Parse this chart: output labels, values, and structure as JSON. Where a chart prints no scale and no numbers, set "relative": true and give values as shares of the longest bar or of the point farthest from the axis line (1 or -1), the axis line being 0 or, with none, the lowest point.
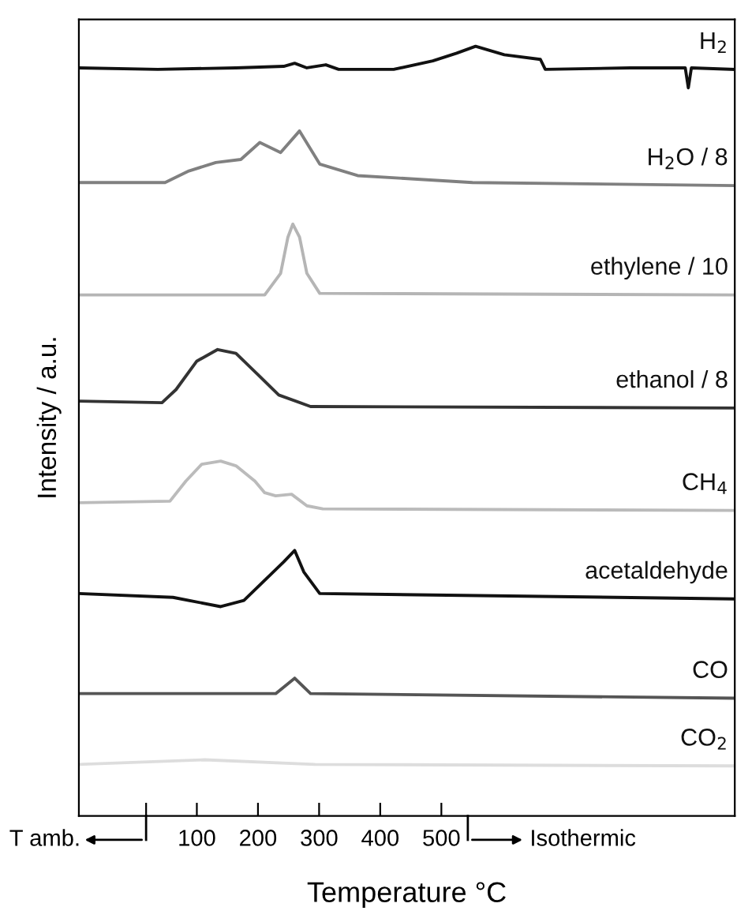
{
  "chart_data": {
    "type": "line",
    "relative": true,
    "xlabel": "Temperature °C",
    "ylabel": "Intensity / a.u.",
    "xlim": [
      -93,
      980
    ],
    "xticks": [
      {
        "value": 17,
        "label": null
      },
      100,
      200,
      300,
      400,
      500
    ],
    "annotations": [
      "T amb.",
      "Isothermic"
    ],
    "grid": false,
    "legend": false,
    "marker": "none",
    "line_style": "solid",
    "series": [
      {
        "name": "H$_{2}$",
        "color": "#111111",
        "x": [
          -93,
          36,
          164,
          242,
          260,
          280,
          311,
          332,
          422,
          486,
          525,
          556,
          603,
          662,
          670,
          809,
          899,
          904,
          909,
          980
        ],
        "values": [
          0.972,
          0.97,
          0.972,
          0.974,
          0.978,
          0.972,
          0.976,
          0.97,
          0.97,
          0.981,
          0.991,
          1.0,
          0.989,
          0.983,
          0.97,
          0.972,
          0.972,
          0.946,
          0.972,
          0.97
        ]
      },
      {
        "name": "H$_{2}$O / 8",
        "color": "#808080",
        "x": [
          -93,
          48,
          87,
          131,
          172,
          203,
          237,
          268,
          301,
          363,
          551,
          980
        ],
        "values": [
          0.823,
          0.823,
          0.838,
          0.849,
          0.853,
          0.875,
          0.862,
          0.89,
          0.847,
          0.832,
          0.823,
          0.819
        ]
      },
      {
        "name": "ethylene / 10",
        "color": "#b5b5b5",
        "x": [
          -93,
          211,
          237,
          249,
          257,
          268,
          280,
          301,
          980
        ],
        "values": [
          0.677,
          0.677,
          0.705,
          0.752,
          0.769,
          0.752,
          0.705,
          0.679,
          0.677
        ]
      },
      {
        "name": "ethanol / 8",
        "color": "#333333",
        "x": [
          -93,
          43,
          66,
          100,
          134,
          164,
          198,
          234,
          286,
          980
        ],
        "values": [
          0.539,
          0.537,
          0.554,
          0.591,
          0.606,
          0.601,
          0.575,
          0.547,
          0.532,
          0.53
        ]
      },
      {
        "name": "CH$_{4}$",
        "color": "#bbbbbb",
        "x": [
          -93,
          56,
          82,
          108,
          139,
          164,
          195,
          211,
          229,
          255,
          280,
          306,
          980
        ],
        "values": [
          0.407,
          0.409,
          0.435,
          0.457,
          0.461,
          0.455,
          0.435,
          0.42,
          0.416,
          0.418,
          0.403,
          0.399,
          0.397
        ]
      },
      {
        "name": "acetaldehyde",
        "color": "#111111",
        "x": [
          -93,
          61,
          139,
          177,
          216,
          242,
          260,
          275,
          301,
          980
        ],
        "values": [
          0.289,
          0.284,
          0.272,
          0.28,
          0.31,
          0.33,
          0.345,
          0.317,
          0.289,
          0.282
        ]
      },
      {
        "name": "CO",
        "color": "#555555",
        "x": [
          -93,
          229,
          260,
          286,
          980
        ],
        "values": [
          0.159,
          0.159,
          0.179,
          0.159,
          0.153
        ]
      },
      {
        "name": "CO$_{2}$",
        "color": "#dddddd",
        "x": [
          -93,
          113,
          293,
          980
        ],
        "values": [
          0.067,
          0.073,
          0.067,
          0.065
        ]
      }
    ]
  }
}
